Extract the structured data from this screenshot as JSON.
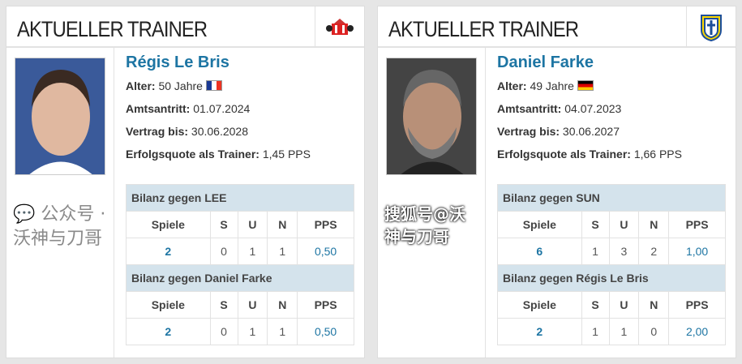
{
  "cards": [
    {
      "title": "AKTUELLER TRAINER",
      "club_logo": "sunderland-crest",
      "name": "Régis Le Bris",
      "alter_label": "Alter:",
      "alter": "50 Jahre",
      "flag": "france-flag",
      "amt_label": "Amtsantritt:",
      "amt": "01.07.2024",
      "vertrag_label": "Vertrag bis:",
      "vertrag": "30.06.2028",
      "quote_label": "Erfolgsquote als Trainer:",
      "quote": "1,45 PPS",
      "tables": [
        {
          "title": "Bilanz gegen LEE",
          "headers": [
            "Spiele",
            "S",
            "U",
            "N",
            "PPS"
          ],
          "values": [
            "2",
            "0",
            "1",
            "1",
            "0,50"
          ]
        },
        {
          "title": "Bilanz gegen Daniel Farke",
          "headers": [
            "Spiele",
            "S",
            "U",
            "N",
            "PPS"
          ],
          "values": [
            "2",
            "0",
            "1",
            "1",
            "0,50"
          ]
        }
      ]
    },
    {
      "title": "AKTUELLER TRAINER",
      "club_logo": "leeds-crest",
      "name": "Daniel Farke",
      "alter_label": "Alter:",
      "alter": "49 Jahre",
      "flag": "germany-flag",
      "amt_label": "Amtsantritt:",
      "amt": "04.07.2023",
      "vertrag_label": "Vertrag bis:",
      "vertrag": "30.06.2027",
      "quote_label": "Erfolgsquote als Trainer:",
      "quote": "1,66 PPS",
      "tables": [
        {
          "title": "Bilanz gegen SUN",
          "headers": [
            "Spiele",
            "S",
            "U",
            "N",
            "PPS"
          ],
          "values": [
            "6",
            "1",
            "3",
            "2",
            "1,00"
          ]
        },
        {
          "title": "Bilanz gegen Régis Le Bris",
          "headers": [
            "Spiele",
            "S",
            "U",
            "N",
            "PPS"
          ],
          "values": [
            "2",
            "1",
            "1",
            "0",
            "2,00"
          ]
        }
      ]
    }
  ],
  "watermark": {
    "wechat": "公众号 · 沃神与刀哥",
    "sohu": "搜狐号@沃神与刀哥"
  },
  "colors": {
    "link": "#1d75a3",
    "table_header": "#d4e3ec"
  }
}
